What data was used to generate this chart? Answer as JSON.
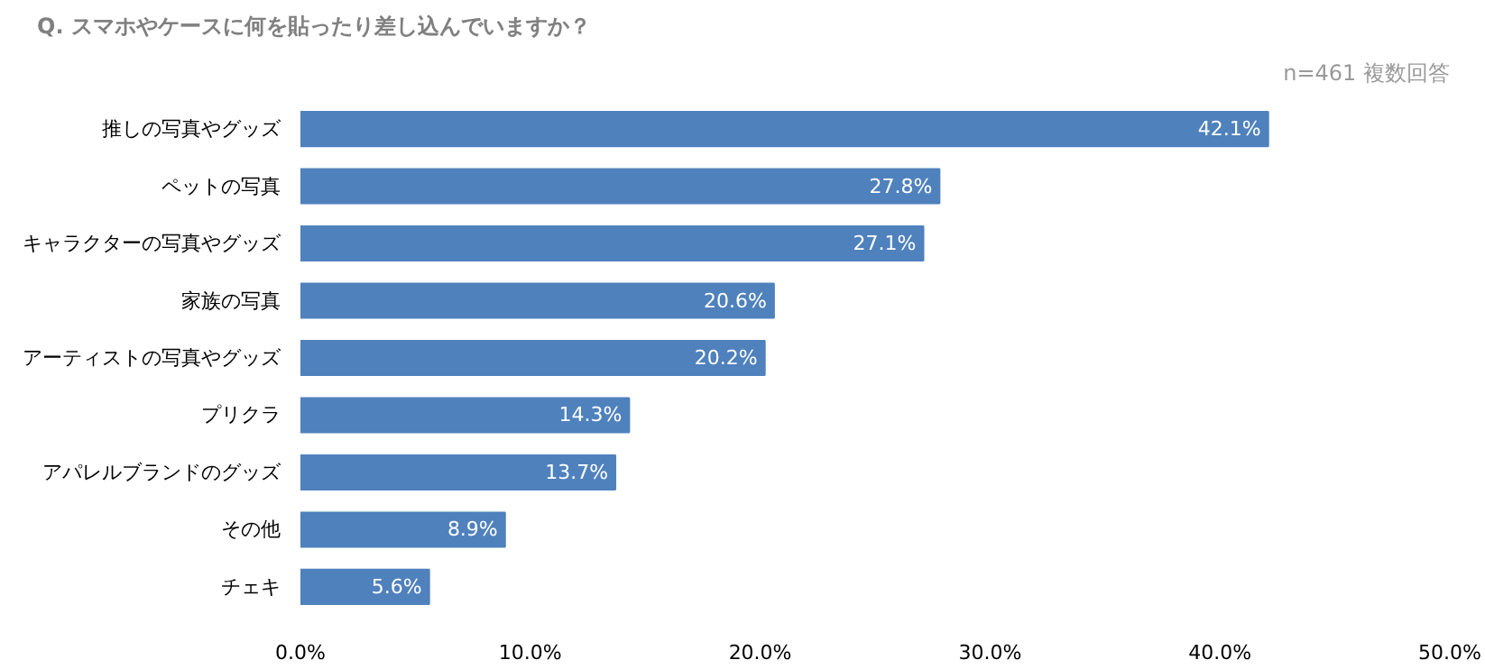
{
  "chart_data": {
    "type": "bar",
    "orientation": "horizontal",
    "title": "Q. スマホやケースに何を貼ったり差し込んでいますか？",
    "subtitle": "n=461 複数回答",
    "categories": [
      "推しの写真やグッズ",
      "ペットの写真",
      "キャラクターの写真やグッズ",
      "家族の写真",
      "アーティストの写真やグッズ",
      "プリクラ",
      "アパレルブランドのグッズ",
      "その他",
      "チェキ"
    ],
    "values": [
      42.1,
      27.8,
      27.1,
      20.6,
      20.2,
      14.3,
      13.7,
      8.9,
      5.6
    ],
    "value_labels": [
      "42.1%",
      "27.8%",
      "27.1%",
      "20.6%",
      "20.2%",
      "14.3%",
      "13.7%",
      "8.9%",
      "5.6%"
    ],
    "color": "#4f81bd",
    "xlim": [
      0,
      50
    ],
    "xticks": [
      {
        "value": 0,
        "label": "0.0%"
      },
      {
        "value": 10,
        "label": "10.0%"
      },
      {
        "value": 20,
        "label": "20.0%"
      },
      {
        "value": 30,
        "label": "30.0%"
      },
      {
        "value": 40,
        "label": "40.0%"
      },
      {
        "value": 50,
        "label": "50.0%"
      }
    ],
    "grid": false
  }
}
